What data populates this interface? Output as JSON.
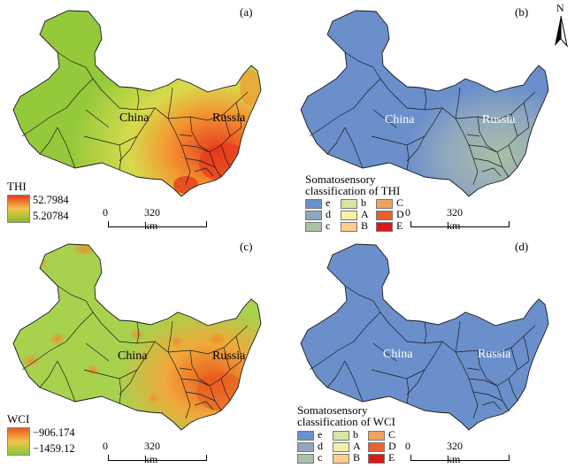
{
  "panels": {
    "a": {
      "label": "(a)",
      "label_china": "China",
      "label_russia": "Russia",
      "legend_title": "THI",
      "legend_max": "52.7984",
      "legend_min": "5.20784",
      "scale_zero": "0",
      "scale_text": "320 km"
    },
    "b": {
      "label": "(b)",
      "label_china": "China",
      "label_russia": "Russia",
      "legend_title_1": "Somatosensory",
      "legend_title_2": "classification of THI",
      "classes": [
        "e",
        "b",
        "C",
        "d",
        "A",
        "D",
        "c",
        "B",
        "E"
      ],
      "scale_zero": "0",
      "scale_text": "320 km"
    },
    "c": {
      "label": "(c)",
      "label_china": "China",
      "label_russia": "Russia",
      "legend_title": "WCI",
      "legend_max": "−906.174",
      "legend_min": "−1459.12",
      "scale_zero": "0",
      "scale_text": "320 km"
    },
    "d": {
      "label": "(d)",
      "label_china": "China",
      "label_russia": "Russia",
      "legend_title_1": "Somatosensory",
      "legend_title_2": "classification of WCI",
      "classes": [
        "e",
        "b",
        "C",
        "d",
        "A",
        "D",
        "c",
        "B",
        "E"
      ],
      "scale_zero": "0",
      "scale_text": "320 km"
    }
  },
  "north_arrow": "N",
  "class_colors": {
    "e": "#6a8fcb",
    "b": "#d6e6a5",
    "C": "#f2a15e",
    "d": "#8fa7bf",
    "A": "#f7f1a8",
    "D": "#e8612f",
    "c": "#a9c1a4",
    "B": "#f8cf8c",
    "E": "#d7191c"
  },
  "colors": {
    "thi_high": "#e63b1d",
    "thi_low": "#7fbf24",
    "wci_high": "#e85a1f",
    "wci_low": "#86c93a",
    "class_blue": "#6a8fcb"
  }
}
